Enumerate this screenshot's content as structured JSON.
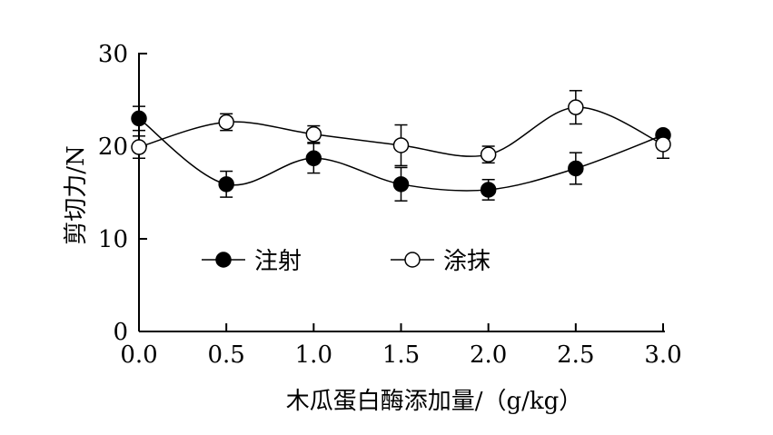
{
  "chart_data": {
    "type": "line",
    "title": "",
    "xlabel": "木瓜蛋白酶添加量/（g/kg）",
    "ylabel": "剪切力/N",
    "x": [
      0.0,
      0.5,
      1.0,
      1.5,
      2.0,
      2.5,
      3.0
    ],
    "x_ticks": [
      "0.0",
      "0.5",
      "1.0",
      "1.5",
      "2.0",
      "2.5",
      "3.0"
    ],
    "y_ticks": [
      "0",
      "10",
      "20",
      "30"
    ],
    "xlim": [
      0,
      3
    ],
    "ylim": [
      0,
      30
    ],
    "grid": false,
    "legend_placement": "lower-left inside plot",
    "series": [
      {
        "name": "注射",
        "marker": "filled-circle",
        "color": "#000000",
        "values": [
          23.0,
          15.9,
          18.7,
          15.9,
          15.3,
          17.6,
          21.2
        ],
        "errors": [
          1.3,
          1.4,
          1.6,
          1.8,
          1.1,
          1.7,
          0.5
        ]
      },
      {
        "name": "涂抹",
        "marker": "open-circle",
        "color": "#000000",
        "values": [
          19.9,
          22.6,
          21.3,
          20.1,
          19.1,
          24.2,
          20.2
        ],
        "errors": [
          1.2,
          0.9,
          0.9,
          2.2,
          0.9,
          1.8,
          1.5
        ]
      }
    ]
  }
}
